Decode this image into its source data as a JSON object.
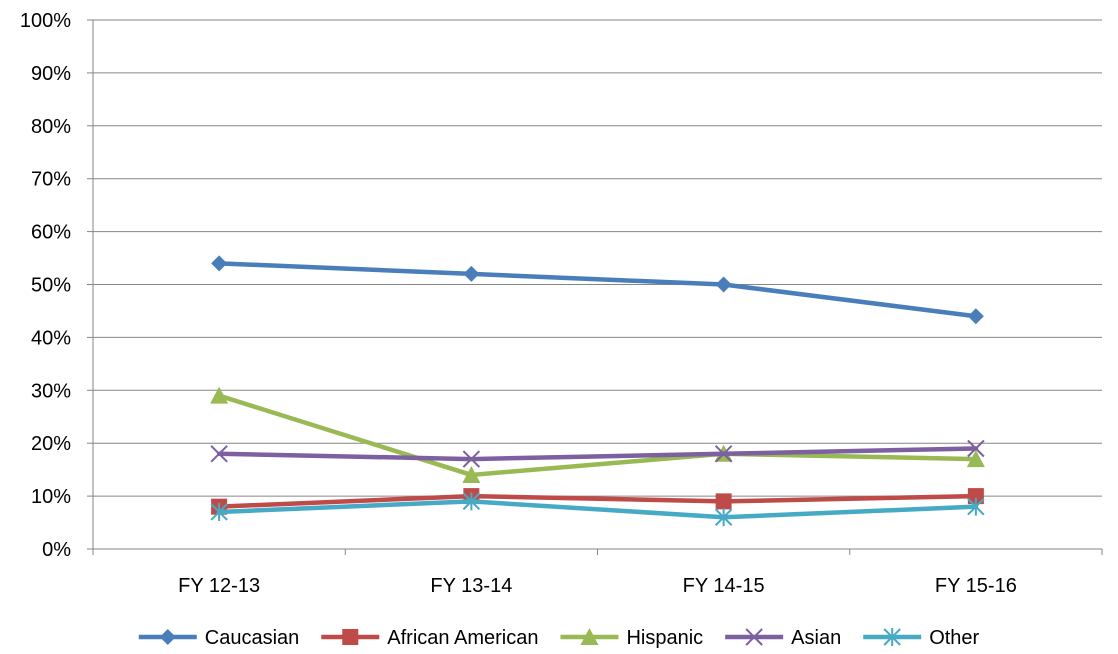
{
  "chart_data": {
    "type": "line",
    "title": "",
    "xlabel": "",
    "ylabel": "",
    "categories": [
      "FY 12-13",
      "FY 13-14",
      "FY 14-15",
      "FY 15-16"
    ],
    "y_ticks": [
      "0%",
      "10%",
      "20%",
      "30%",
      "40%",
      "50%",
      "60%",
      "70%",
      "80%",
      "90%",
      "100%"
    ],
    "ylim": [
      0,
      100
    ],
    "grid": "horizontal",
    "legend_position": "bottom",
    "series": [
      {
        "name": "Caucasian",
        "values": [
          54,
          52,
          50,
          44
        ],
        "color": "#4a7ebb",
        "marker": "diamond"
      },
      {
        "name": "African American",
        "values": [
          8,
          10,
          9,
          10
        ],
        "color": "#be4b48",
        "marker": "square"
      },
      {
        "name": "Hispanic",
        "values": [
          29,
          14,
          18,
          17
        ],
        "color": "#98b954",
        "marker": "triangle"
      },
      {
        "name": "Asian",
        "values": [
          18,
          17,
          18,
          19
        ],
        "color": "#7d60a0",
        "marker": "x"
      },
      {
        "name": "Other",
        "values": [
          7,
          9,
          6,
          8
        ],
        "color": "#46aac5",
        "marker": "star"
      }
    ]
  }
}
